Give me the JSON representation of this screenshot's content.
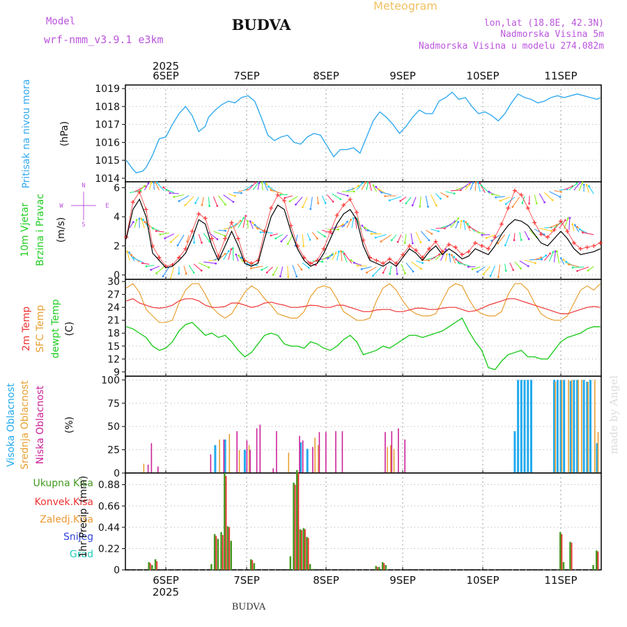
{
  "header": {
    "title": "BUDVA",
    "meteogram_label": "Meteogram",
    "model_label": "Model",
    "model_name": "wrf-nmm_v3.9.1  e3km",
    "lonlat": "lon,lat (18.8E, 42.3N)",
    "elevation": "Nadmorska Visina 5m",
    "model_elevation": "Nadmorska Visina u modelu 274.082m",
    "footer_title": "BUDVA",
    "watermark": "made by Angel"
  },
  "colors": {
    "pressure": "#33aaee",
    "wind_speed": "#000000",
    "wind_gust": "#ff3333",
    "temp_2m": "#ee3333",
    "temp_sfc": "#e8a030",
    "dewpoint": "#22cc22",
    "cloud_high": "#22aaee",
    "cloud_mid": "#e8a030",
    "cloud_low": "#cc2299",
    "precip_total": "#449922",
    "precip_conv": "#ee3333",
    "accent_purple": "#bb55dd",
    "accent_orange": "#ee9933"
  },
  "x_axis": {
    "year_label": "2025",
    "days": [
      "6SEP",
      "7SEP",
      "8SEP",
      "9SEP",
      "10SEP",
      "11SEP"
    ]
  },
  "chart_data": [
    {
      "type": "line",
      "panel": "pressure",
      "ylabel_main": "Pritisak na nivou mora",
      "ylabel_unit": "(hPa)",
      "yticks": [
        1014,
        1015,
        1016,
        1017,
        1018,
        1019
      ],
      "ylim": [
        1013.8,
        1019.2
      ],
      "xlim_hours": [
        0,
        144
      ],
      "x_hours": [
        0,
        2,
        3,
        5,
        6,
        8,
        10,
        12,
        14,
        16,
        18,
        20,
        22,
        24,
        25,
        27,
        29,
        31,
        33,
        35,
        37,
        39,
        41,
        43,
        45,
        47,
        49,
        51,
        53,
        55,
        57,
        59,
        61,
        63,
        65,
        67,
        69,
        71,
        73,
        75,
        77,
        79,
        81,
        83,
        85,
        87,
        89,
        91,
        93,
        95,
        97,
        99,
        101,
        103,
        105,
        107,
        109,
        111,
        113,
        115,
        117,
        119,
        121,
        123,
        125,
        127,
        129,
        131,
        133,
        135,
        137,
        139,
        141,
        143,
        144
      ],
      "series": [
        {
          "name": "Pritisak",
          "values": [
            1015.0,
            1014.5,
            1014.3,
            1014.4,
            1014.6,
            1015.3,
            1016.2,
            1016.3,
            1017.0,
            1017.6,
            1018.0,
            1017.5,
            1016.6,
            1016.9,
            1017.4,
            1017.8,
            1018.1,
            1018.3,
            1018.2,
            1018.5,
            1018.6,
            1018.3,
            1017.4,
            1016.4,
            1016.1,
            1016.3,
            1016.4,
            1016.0,
            1015.9,
            1016.3,
            1016.5,
            1016.4,
            1015.8,
            1015.2,
            1015.6,
            1015.6,
            1015.7,
            1015.4,
            1016.3,
            1017.2,
            1017.7,
            1017.4,
            1017.0,
            1016.5,
            1016.9,
            1017.4,
            1017.8,
            1017.6,
            1017.6,
            1018.3,
            1018.5,
            1018.8,
            1018.4,
            1018.5,
            1018.0,
            1017.6,
            1017.7,
            1017.5,
            1017.2,
            1017.6,
            1018.2,
            1018.7,
            1018.5,
            1018.4,
            1018.2,
            1018.3,
            1018.5,
            1018.6,
            1018.5,
            1018.6,
            1018.7,
            1018.6,
            1018.5,
            1018.4,
            1018.5
          ]
        }
      ]
    },
    {
      "type": "line",
      "panel": "wind",
      "ylabel_main": "10m Vjetar",
      "ylabel_sub": "Brzina i Pravac",
      "ylabel_unit": "(m/s)",
      "compass": {
        "north": "N",
        "south": "S",
        "west": "W",
        "east": "E"
      },
      "yticks": [
        0,
        2,
        4,
        6
      ],
      "ylim": [
        -0.3,
        6.4
      ],
      "xlim_hours": [
        0,
        144
      ],
      "x_hours": [
        0,
        2,
        4,
        6,
        8,
        10,
        12,
        14,
        16,
        18,
        20,
        22,
        24,
        26,
        28,
        30,
        32,
        34,
        36,
        38,
        40,
        42,
        44,
        46,
        48,
        50,
        52,
        54,
        56,
        58,
        60,
        62,
        64,
        66,
        68,
        70,
        72,
        74,
        76,
        78,
        80,
        82,
        84,
        86,
        88,
        90,
        92,
        94,
        96,
        98,
        100,
        102,
        104,
        106,
        108,
        110,
        112,
        114,
        116,
        118,
        120,
        122,
        124,
        126,
        128,
        130,
        132,
        134,
        136,
        138,
        140,
        142,
        144
      ],
      "series": [
        {
          "name": "Brzina",
          "values": [
            2.5,
            4.5,
            5.2,
            4.0,
            1.5,
            1.0,
            0.5,
            0.6,
            1.0,
            1.5,
            2.5,
            3.8,
            3.5,
            2.0,
            1.0,
            2.0,
            3.0,
            2.0,
            0.8,
            0.6,
            0.8,
            2.5,
            4.0,
            4.8,
            4.5,
            3.0,
            1.8,
            1.0,
            0.6,
            0.8,
            1.5,
            2.5,
            3.5,
            4.2,
            4.5,
            3.8,
            2.0,
            1.0,
            0.8,
            0.6,
            0.9,
            0.6,
            1.2,
            1.8,
            1.5,
            1.0,
            1.6,
            2.0,
            1.4,
            1.8,
            1.5,
            1.1,
            1.3,
            1.8,
            1.6,
            1.4,
            2.0,
            2.8,
            3.4,
            3.8,
            3.7,
            3.4,
            2.8,
            2.2,
            2.0,
            2.5,
            3.0,
            2.5,
            1.8,
            1.4,
            1.5,
            1.6,
            1.8
          ]
        },
        {
          "name": "Udari",
          "values": [
            2.6,
            5.0,
            5.7,
            4.5,
            2.0,
            1.2,
            0.6,
            0.7,
            1.2,
            1.8,
            3.0,
            4.2,
            3.9,
            2.5,
            1.3,
            2.5,
            3.6,
            2.5,
            1.0,
            0.8,
            1.0,
            3.0,
            4.6,
            5.5,
            5.1,
            3.4,
            2.0,
            1.2,
            0.8,
            1.0,
            1.8,
            3.0,
            4.1,
            4.8,
            5.2,
            4.3,
            2.4,
            1.2,
            1.0,
            0.8,
            1.1,
            0.8,
            1.4,
            2.0,
            1.7,
            1.2,
            1.8,
            2.3,
            1.6,
            2.1,
            1.9,
            1.4,
            1.6,
            2.2,
            2.0,
            1.8,
            2.6,
            3.5,
            4.6,
            5.8,
            5.5,
            4.6,
            3.6,
            2.8,
            2.6,
            3.1,
            3.7,
            3.0,
            2.2,
            1.8,
            1.9,
            2.0,
            2.2
          ]
        }
      ]
    },
    {
      "type": "line",
      "panel": "temperature",
      "ylabel_2m": "2m Temp",
      "ylabel_sfc": "SFC Temp",
      "ylabel_dew": "dewpt Temp",
      "ylabel_unit": "(C)",
      "yticks": [
        9,
        12,
        15,
        18,
        21,
        24,
        27,
        30
      ],
      "ylim": [
        8,
        30.5
      ],
      "xlim_hours": [
        0,
        144
      ],
      "x_hours": [
        0,
        2,
        4,
        6,
        8,
        10,
        12,
        14,
        16,
        18,
        20,
        22,
        24,
        26,
        28,
        30,
        32,
        34,
        36,
        38,
        40,
        42,
        44,
        46,
        48,
        50,
        52,
        54,
        56,
        58,
        60,
        62,
        64,
        66,
        68,
        70,
        72,
        74,
        76,
        78,
        80,
        82,
        84,
        86,
        88,
        90,
        92,
        94,
        96,
        98,
        100,
        102,
        104,
        106,
        108,
        110,
        112,
        114,
        116,
        118,
        120,
        122,
        124,
        126,
        128,
        130,
        132,
        134,
        136,
        138,
        140,
        142,
        144
      ],
      "series": [
        {
          "name": "2m Temp",
          "values": [
            25.5,
            26.0,
            25.0,
            24.5,
            24.0,
            23.8,
            24.0,
            24.5,
            25.5,
            26.0,
            26.0,
            25.5,
            24.5,
            24.0,
            24.0,
            24.2,
            25.0,
            25.0,
            24.5,
            24.0,
            24.3,
            25.0,
            25.2,
            24.8,
            24.5,
            24.0,
            24.0,
            24.2,
            24.5,
            24.4,
            24.0,
            24.0,
            24.5,
            24.5,
            24.0,
            23.5,
            23.0,
            23.0,
            23.4,
            23.5,
            23.5,
            23.0,
            23.0,
            23.4,
            23.8,
            23.8,
            23.5,
            23.5,
            23.8,
            24.0,
            24.0,
            23.5,
            23.0,
            23.2,
            23.8,
            24.5,
            25.0,
            25.5,
            26.0,
            26.0,
            25.5,
            25.0,
            24.5,
            24.0,
            23.5,
            23.0,
            22.5,
            22.5,
            23.0,
            23.5,
            24.0,
            24.2,
            24.0
          ]
        },
        {
          "name": "SFC Temp",
          "values": [
            28.5,
            29.5,
            27.5,
            23.5,
            22.0,
            20.5,
            20.5,
            21.0,
            25.0,
            28.0,
            29.5,
            29.5,
            27.0,
            24.0,
            22.5,
            21.5,
            22.5,
            25.0,
            27.5,
            29.0,
            28.0,
            26.0,
            24.5,
            22.5,
            22.0,
            21.5,
            21.5,
            23.0,
            26.5,
            28.5,
            29.0,
            28.5,
            26.0,
            23.0,
            22.0,
            21.0,
            21.0,
            21.5,
            25.5,
            28.5,
            29.5,
            28.0,
            25.5,
            23.5,
            22.5,
            22.0,
            22.0,
            22.5,
            25.5,
            28.5,
            29.5,
            29.0,
            26.0,
            23.5,
            22.5,
            22.0,
            22.0,
            23.0,
            27.0,
            29.5,
            29.5,
            28.0,
            25.0,
            22.5,
            21.5,
            21.0,
            21.0,
            22.0,
            25.0,
            28.0,
            29.0,
            28.0,
            29.5
          ]
        },
        {
          "name": "dewpt Temp",
          "values": [
            19.5,
            19.0,
            18.0,
            17.0,
            15.0,
            14.0,
            14.5,
            16.0,
            18.5,
            20.0,
            20.5,
            19.0,
            17.5,
            18.0,
            17.0,
            17.5,
            16.0,
            14.0,
            12.5,
            13.5,
            15.5,
            17.5,
            18.0,
            17.5,
            15.5,
            15.0,
            15.0,
            14.5,
            16.0,
            15.5,
            14.5,
            14.0,
            15.0,
            16.5,
            17.5,
            16.0,
            13.0,
            13.5,
            14.0,
            15.0,
            14.5,
            15.5,
            16.5,
            17.5,
            17.5,
            17.0,
            17.5,
            18.0,
            18.5,
            19.5,
            20.5,
            21.5,
            18.5,
            16.0,
            14.0,
            10.0,
            9.5,
            11.5,
            13.0,
            13.5,
            14.0,
            12.5,
            12.5,
            12.0,
            12.0,
            14.0,
            16.0,
            17.0,
            17.5,
            18.0,
            19.0,
            19.5,
            19.5
          ]
        }
      ]
    },
    {
      "type": "bar",
      "panel": "clouds",
      "ylabel_high": "Visoka Oblacnost",
      "ylabel_mid": "Srednja Oblacnost",
      "ylabel_low": "Niska Oblacnost",
      "ylabel_unit": "(%)",
      "yticks": [
        0,
        25,
        50,
        75,
        100
      ],
      "ylim": [
        0,
        104
      ],
      "xlim_hours": [
        0,
        144
      ],
      "series": [
        {
          "name": "Visoka",
          "x_hours": [
            27,
            30,
            36,
            53,
            55,
            118,
            119,
            120,
            121,
            122,
            123,
            130,
            131,
            132,
            133,
            135,
            136,
            137,
            139,
            140,
            141,
            143
          ],
          "values": [
            30,
            36,
            25,
            33,
            26,
            45,
            100,
            100,
            100,
            100,
            100,
            100,
            100,
            100,
            100,
            99,
            100,
            100,
            100,
            98,
            100,
            32
          ]
        },
        {
          "name": "Srednja",
          "x_hours": [
            5,
            28,
            31,
            34,
            37,
            49,
            57,
            58,
            79,
            80,
            81,
            130,
            132,
            134,
            135,
            137,
            138,
            140,
            142,
            143
          ],
          "values": [
            10,
            36,
            42,
            25,
            30,
            22,
            38,
            30,
            28,
            30,
            26,
            98,
            100,
            100,
            100,
            100,
            100,
            98,
            100,
            44
          ]
        },
        {
          "name": "Niska",
          "x_hours": [
            6,
            7,
            9,
            25,
            29,
            33,
            36,
            37,
            39,
            40,
            44,
            45,
            52,
            53,
            56,
            58,
            60,
            63,
            65,
            78,
            80,
            82,
            84
          ],
          "values": [
            9,
            32,
            7,
            20,
            36,
            45,
            35,
            25,
            48,
            52,
            5,
            45,
            40,
            35,
            28,
            44,
            44,
            45,
            45,
            44,
            45,
            48,
            36
          ]
        }
      ]
    },
    {
      "type": "bar",
      "panel": "precipitation",
      "ylabel_main": "1hr Precip",
      "ylabel_unit": "(mm)",
      "legend": [
        "Ukupna  Kisa",
        "Konvek.Kisa",
        "Zaledj.Kisa",
        "Snijeg",
        "Grad"
      ],
      "yticks": [
        0,
        0.22,
        0.44,
        0.66,
        0.88
      ],
      "ytick_labels": [
        "0",
        "0.22",
        "0.44",
        "0.66",
        "0.88"
      ],
      "ylim": [
        0,
        1.0
      ],
      "xlim_hours": [
        0,
        144
      ],
      "series": [
        {
          "name": "Ukupna Kisa",
          "x_hours": [
            7,
            8,
            9,
            26,
            27,
            28,
            29,
            30,
            31,
            32,
            38,
            39,
            50,
            51,
            52,
            53,
            54,
            55,
            56,
            57,
            76,
            77,
            78,
            79,
            132,
            133,
            135,
            142,
            143
          ],
          "values": [
            0.08,
            0.05,
            0.11,
            0.06,
            0.37,
            0.32,
            0.39,
            1.0,
            0.45,
            0.3,
            0.11,
            0.07,
            0.14,
            0.9,
            1.03,
            0.42,
            0.43,
            0.34,
            0.06,
            0.01,
            0.04,
            0.03,
            0.08,
            0.05,
            0.39,
            0.08,
            0.29,
            0.05,
            0.2
          ]
        },
        {
          "name": "Konvek.Kisa",
          "x_hours": [
            7,
            9,
            27,
            29,
            30,
            31,
            38,
            51,
            52,
            53,
            54,
            55,
            76,
            78,
            132,
            135,
            143
          ],
          "values": [
            0.07,
            0.09,
            0.35,
            0.36,
            0.97,
            0.44,
            0.1,
            0.88,
            1.0,
            0.41,
            0.42,
            0.33,
            0.03,
            0.07,
            0.37,
            0.28,
            0.19
          ]
        }
      ]
    }
  ]
}
